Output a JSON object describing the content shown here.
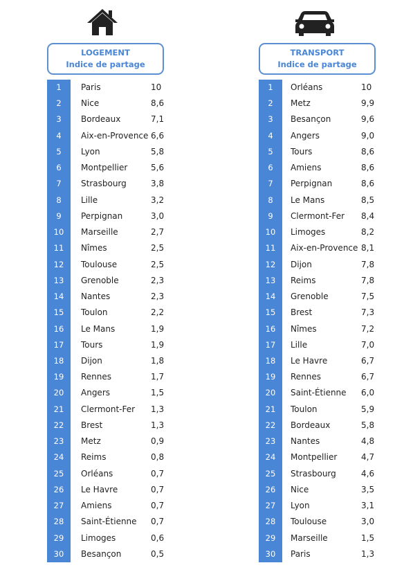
{
  "panels": [
    {
      "title": "LOGEMENT",
      "subtitle": "Indice de partage",
      "rows": [
        [
          1,
          "Paris",
          "10"
        ],
        [
          2,
          "Nice",
          "8,6"
        ],
        [
          3,
          "Bordeaux",
          "7,1"
        ],
        [
          4,
          "Aix-en-Provence",
          "6,6"
        ],
        [
          5,
          "Lyon",
          "5,8"
        ],
        [
          6,
          "Montpellier",
          "5,6"
        ],
        [
          7,
          "Strasbourg",
          "3,8"
        ],
        [
          8,
          "Lille",
          "3,2"
        ],
        [
          9,
          "Perpignan",
          "3,0"
        ],
        [
          10,
          "Marseille",
          "2,7"
        ],
        [
          11,
          "Nîmes",
          "2,5"
        ],
        [
          12,
          "Toulouse",
          "2,5"
        ],
        [
          13,
          "Grenoble",
          "2,3"
        ],
        [
          14,
          "Nantes",
          "2,3"
        ],
        [
          15,
          "Toulon",
          "2,2"
        ],
        [
          16,
          "Le Mans",
          "1,9"
        ],
        [
          17,
          "Tours",
          "1,9"
        ],
        [
          18,
          "Dijon",
          "1,8"
        ],
        [
          19,
          "Rennes",
          "1,7"
        ],
        [
          20,
          "Angers",
          "1,5"
        ],
        [
          21,
          "Clermont-Fer",
          "1,3"
        ],
        [
          22,
          "Brest",
          "1,3"
        ],
        [
          23,
          "Metz",
          "0,9"
        ],
        [
          24,
          "Reims",
          "0,8"
        ],
        [
          25,
          "Orléans",
          "0,7"
        ],
        [
          26,
          "Le Havre",
          "0,7"
        ],
        [
          27,
          "Amiens",
          "0,7"
        ],
        [
          28,
          "Saint-Étienne",
          "0,7"
        ],
        [
          29,
          "Limoges",
          "0,6"
        ],
        [
          30,
          "Besançon",
          "0,5"
        ]
      ]
    },
    {
      "title": "TRANSPORT",
      "subtitle": "Indice de partage",
      "rows": [
        [
          1,
          "Orléans",
          "10"
        ],
        [
          2,
          "Metz",
          "9,9"
        ],
        [
          3,
          "Besançon",
          "9,6"
        ],
        [
          4,
          "Angers",
          "9,0"
        ],
        [
          5,
          "Tours",
          "8,6"
        ],
        [
          6,
          "Amiens",
          "8,6"
        ],
        [
          7,
          "Perpignan",
          "8,6"
        ],
        [
          8,
          "Le Mans",
          "8,5"
        ],
        [
          9,
          "Clermont-Fer",
          "8,4"
        ],
        [
          10,
          "Limoges",
          "8,2"
        ],
        [
          11,
          "Aix-en-Provence",
          "8,1"
        ],
        [
          12,
          "Dijon",
          "7,8"
        ],
        [
          13,
          "Reims",
          "7,8"
        ],
        [
          14,
          "Grenoble",
          "7,5"
        ],
        [
          15,
          "Brest",
          "7,3"
        ],
        [
          16,
          "Nîmes",
          "7,2"
        ],
        [
          17,
          "Lille",
          "7,0"
        ],
        [
          18,
          "Le Havre",
          "6,7"
        ],
        [
          19,
          "Rennes",
          "6,7"
        ],
        [
          20,
          "Saint-Étienne",
          "6,0"
        ],
        [
          21,
          "Toulon",
          "5,9"
        ],
        [
          22,
          "Bordeaux",
          "5,8"
        ],
        [
          23,
          "Nantes",
          "4,8"
        ],
        [
          24,
          "Montpellier",
          "4,7"
        ],
        [
          25,
          "Strasbourg",
          "4,6"
        ],
        [
          26,
          "Nice",
          "3,5"
        ],
        [
          27,
          "Lyon",
          "3,1"
        ],
        [
          28,
          "Toulouse",
          "3,0"
        ],
        [
          29,
          "Marseille",
          "1,5"
        ],
        [
          30,
          "Paris",
          "1,3"
        ]
      ]
    }
  ]
}
